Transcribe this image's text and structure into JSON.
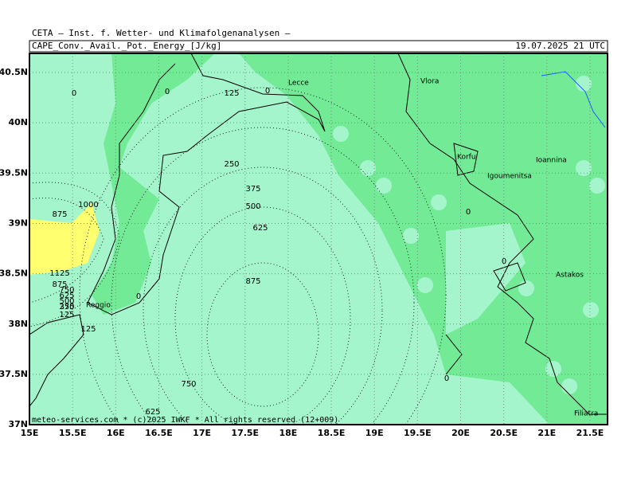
{
  "header": {
    "title": "CETA – Inst. f. Wetter- und Klimafolgenanalysen –",
    "field": "CAPE_Conv._Avail._Pot._Energy_[J/kg]",
    "valid": "19.07.2025 21 UTC"
  },
  "axes": {
    "lat_ticks": [
      {
        "value": 40.5,
        "label": "40.5N"
      },
      {
        "value": 40,
        "label": "40N"
      },
      {
        "value": 39.5,
        "label": "39.5N"
      },
      {
        "value": 39,
        "label": "39N"
      },
      {
        "value": 38.5,
        "label": "38.5N"
      },
      {
        "value": 38,
        "label": "38N"
      },
      {
        "value": 37.5,
        "label": "37.5N"
      },
      {
        "value": 37,
        "label": "37N"
      }
    ],
    "lon_ticks": [
      {
        "value": 15,
        "label": "15E"
      },
      {
        "value": 15.5,
        "label": "15.5E"
      },
      {
        "value": 16,
        "label": "16E"
      },
      {
        "value": 16.5,
        "label": "16.5E"
      },
      {
        "value": 17,
        "label": "17E"
      },
      {
        "value": 17.5,
        "label": "17.5E"
      },
      {
        "value": 18,
        "label": "18E"
      },
      {
        "value": 18.5,
        "label": "18.5E"
      },
      {
        "value": 19,
        "label": "19E"
      },
      {
        "value": 19.5,
        "label": "19.5E"
      },
      {
        "value": 20,
        "label": "20E"
      },
      {
        "value": 20.5,
        "label": "20.5E"
      },
      {
        "value": 21,
        "label": "21E"
      },
      {
        "value": 21.5,
        "label": "21.5E"
      }
    ]
  },
  "contour_labels": [
    0,
    0,
    125,
    0,
    250,
    375,
    500,
    625,
    875,
    1000,
    875,
    1125,
    875,
    750,
    625,
    500,
    375,
    250,
    125,
    0,
    125,
    750,
    625,
    0,
    0,
    0
  ],
  "places": [
    "Vlora",
    "Lecce",
    "Korfu",
    "Igoumenitsa",
    "Ioannina",
    "Astakos",
    "Filiatra",
    "Reggio"
  ],
  "footer": "meteo-services.com * (c)2025 IWKF * All rights reserved (12+009)"
}
